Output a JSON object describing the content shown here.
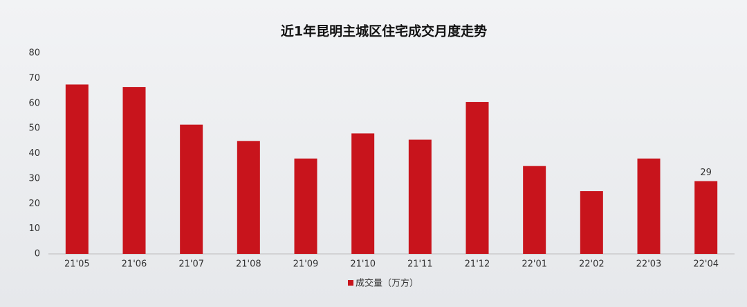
{
  "chart_data": {
    "type": "bar",
    "title": "近1年昆明主城区住宅成交月度走势",
    "categories": [
      "21'05",
      "21'06",
      "21'07",
      "21'08",
      "21'09",
      "21'10",
      "21'11",
      "21'12",
      "22'01",
      "22'02",
      "22'03",
      "22'04"
    ],
    "series": [
      {
        "name": "成交量（万方）",
        "color": "#c8141c",
        "values": [
          67.5,
          66.5,
          51.5,
          45,
          38,
          48,
          45.5,
          60.5,
          35,
          25,
          38,
          29
        ],
        "value_labels": [
          null,
          null,
          null,
          null,
          null,
          null,
          null,
          null,
          null,
          null,
          null,
          "29"
        ]
      }
    ],
    "ylim": [
      0,
      80
    ],
    "yticks": [
      0,
      10,
      20,
      30,
      40,
      50,
      60,
      70,
      80
    ],
    "grid": false,
    "legend": "bottom"
  }
}
